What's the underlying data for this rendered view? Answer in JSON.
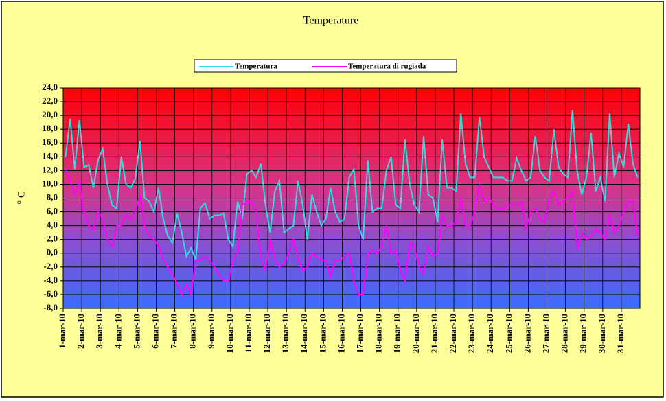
{
  "chart_data": {
    "type": "line",
    "title": "Temperature",
    "ylabel": "° C",
    "categories": [
      "1-mar-10",
      null,
      null,
      null,
      "2-mar-10",
      null,
      null,
      null,
      "3-mar-10",
      null,
      null,
      null,
      "4-mar-10",
      null,
      null,
      null,
      "5-mar-10",
      null,
      null,
      null,
      "6-mar-10",
      null,
      null,
      null,
      "7-mar-10",
      null,
      null,
      null,
      "8-mar-10",
      null,
      null,
      null,
      "9-mar-10",
      null,
      null,
      null,
      "10-mar-10",
      null,
      null,
      null,
      "11-mar-10",
      null,
      null,
      null,
      "12-mar-10",
      null,
      null,
      null,
      "13-mar-10",
      null,
      null,
      null,
      "14-mar-10",
      null,
      null,
      null,
      "15-mar-10",
      null,
      null,
      null,
      "16-mar-10",
      null,
      null,
      null,
      "17-mar-10",
      null,
      null,
      null,
      "18-mar-10",
      null,
      null,
      null,
      "19-mar-10",
      null,
      null,
      null,
      "20-mar-10",
      null,
      null,
      null,
      "21-mar-10",
      null,
      null,
      null,
      "22-mar-10",
      null,
      null,
      null,
      "23-mar-10",
      null,
      null,
      null,
      "24-mar-10",
      null,
      null,
      null,
      "25-mar-10",
      null,
      null,
      null,
      "26-mar-10",
      null,
      null,
      null,
      "27-mar-10",
      null,
      null,
      null,
      "28-mar-10",
      null,
      null,
      null,
      "29-mar-10",
      null,
      null,
      null,
      "30-mar-10",
      null,
      null,
      null,
      "31-mar-10",
      null,
      null,
      null
    ],
    "series": [
      {
        "name": "Temperatura",
        "color": "#33dddd",
        "values": [
          14,
          19.5,
          12.2,
          19.3,
          12.5,
          12.8,
          9.5,
          13.5,
          15.2,
          10,
          7,
          6.5,
          14,
          10,
          9.5,
          10.8,
          16.3,
          8,
          7.5,
          6,
          9.5,
          5,
          2.5,
          1.5,
          5.8,
          3,
          -0.5,
          0.8,
          -1,
          6.5,
          7.3,
          5,
          5.5,
          5.5,
          5.8,
          2,
          1,
          7.5,
          5,
          11.5,
          12,
          11,
          13,
          7,
          3,
          9,
          10.5,
          3,
          3.5,
          4,
          10.5,
          7,
          2,
          8.5,
          6,
          4,
          5,
          9.5,
          6,
          4.5,
          5,
          11,
          12.2,
          4,
          2,
          13.5,
          6,
          6.5,
          6.5,
          12,
          14,
          7,
          6.5,
          16.5,
          10,
          7,
          6,
          17,
          8.5,
          8,
          4.5,
          16.5,
          9.5,
          9.5,
          9,
          20.3,
          13,
          11,
          11,
          19.8,
          14,
          12.5,
          11,
          11,
          11,
          10.5,
          10.5,
          13.8,
          12,
          10.5,
          11,
          17,
          12,
          11,
          10.5,
          18,
          12.5,
          11.5,
          11,
          20.8,
          12,
          8.5,
          11,
          17.5,
          9,
          11,
          7.5,
          20.3,
          11,
          14.5,
          12.5,
          18.8,
          13,
          11
        ]
      },
      {
        "name": "Temperatura di rugiada",
        "color": "#ff00ff",
        "values": [
          12,
          10.5,
          8.5,
          10.5,
          6,
          4,
          3.5,
          6,
          5,
          2,
          1,
          4,
          4,
          5.5,
          5,
          6,
          8.5,
          4,
          2.5,
          2,
          1,
          -1,
          -2,
          -3,
          -4.5,
          -6,
          -4.5,
          -6,
          -1,
          -1,
          -0.5,
          -1,
          -2,
          -3,
          -4,
          -4,
          -1,
          0,
          7,
          7.5,
          7.5,
          6,
          -1,
          -2.5,
          2,
          -1,
          -2,
          -1.5,
          0,
          2,
          -1,
          -2.5,
          -2,
          0,
          -0.5,
          -1,
          -1,
          -3.5,
          -1,
          -1,
          -0.5,
          0,
          -4,
          -6,
          -6,
          0,
          0.5,
          0,
          1,
          4,
          0,
          0.5,
          -2.5,
          -4,
          1.5,
          1,
          -2,
          -3,
          1,
          -0.5,
          0,
          5.5,
          4,
          4,
          4.5,
          8,
          4,
          4,
          6,
          10,
          7.5,
          8,
          7,
          6.5,
          6.5,
          7,
          7,
          7,
          7.5,
          3.5,
          6,
          6.5,
          5,
          4.5,
          8,
          9,
          7,
          7.5,
          8,
          9,
          0.5,
          3,
          2,
          2.5,
          3.5,
          3,
          2,
          5.5,
          3,
          4,
          6,
          7.5,
          7.5,
          2.5
        ]
      }
    ],
    "ylim": [
      -8,
      24
    ],
    "yticks": [
      {
        "value": -8,
        "label": "-8,0"
      },
      {
        "value": -6,
        "label": "-6,0"
      },
      {
        "value": -4,
        "label": "-4,0"
      },
      {
        "value": -2,
        "label": "-2,0"
      },
      {
        "value": 0,
        "label": "0,0"
      },
      {
        "value": 2,
        "label": "2,0"
      },
      {
        "value": 4,
        "label": "4,0"
      },
      {
        "value": 6,
        "label": "6,0"
      },
      {
        "value": 8,
        "label": "8,0"
      },
      {
        "value": 10,
        "label": "10,0"
      },
      {
        "value": 12,
        "label": "12,0"
      },
      {
        "value": 14,
        "label": "14,0"
      },
      {
        "value": 16,
        "label": "16,0"
      },
      {
        "value": 18,
        "label": "18,0"
      },
      {
        "value": 20,
        "label": "20,0"
      },
      {
        "value": 22,
        "label": "22,0"
      },
      {
        "value": 24,
        "label": "24,0"
      }
    ],
    "grid": true,
    "legend": "top"
  }
}
